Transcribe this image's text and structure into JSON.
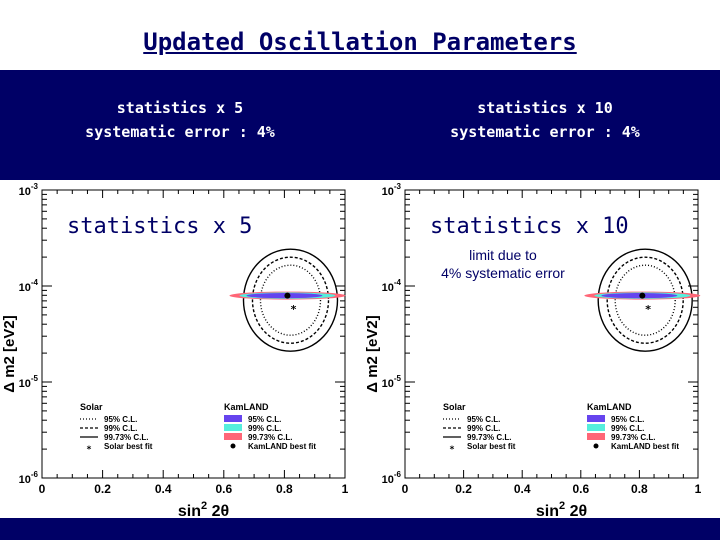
{
  "title": "Updated Oscillation Parameters",
  "band": {
    "left": {
      "line1": "statistics x 5",
      "line2": "systematic error : 4%"
    },
    "right": {
      "line1": "statistics x 10",
      "line2": "systematic error : 4%"
    }
  },
  "colors": {
    "navy": "#000066",
    "c95": "#6644ee",
    "c99": "#55eedd",
    "c9973": "#ff6677"
  },
  "chart_data": [
    {
      "type": "contour",
      "panel_label": "statistics x 5",
      "xlabel": "sin2 2θ",
      "xlabel_main": "sin",
      "xlabel_sup": "2",
      "xlabel_tail": " 2θ",
      "ylabel": "Δ m2 [eV2]",
      "x_ticks": [
        "0",
        "0.2",
        "0.4",
        "0.6",
        "0.8",
        "1"
      ],
      "y_ticks": [
        {
          "base": "10",
          "exp": "-3"
        },
        {
          "base": "10",
          "exp": "-4"
        },
        {
          "base": "10",
          "exp": "-5"
        },
        {
          "base": "10",
          "exp": "-6"
        }
      ],
      "xlim": [
        0,
        1
      ],
      "ylim_log10": [
        -6,
        -3
      ],
      "solar_best_fit": {
        "x": 0.83,
        "log10_y": -4.2
      },
      "kamland_best_fit": {
        "x": 0.81,
        "log10_y": -4.1
      },
      "solar_legend": {
        "title": "Solar",
        "entries": [
          "95% C.L.",
          "99% C.L.",
          "99.73% C.L.",
          "Solar best fit"
        ]
      },
      "kamland_legend": {
        "title": "KamLAND",
        "entries": [
          "95% C.L.",
          "99% C.L.",
          "99.73% C.L.",
          "KamLAND best fit"
        ]
      }
    },
    {
      "type": "contour",
      "panel_label": "statistics x 10",
      "annotation": {
        "line1": "limit due to",
        "line2": "4% systematic error"
      },
      "xlabel": "sin2 2θ",
      "xlabel_main": "sin",
      "xlabel_sup": "2",
      "xlabel_tail": " 2θ",
      "ylabel": "Δ m2 [eV2]",
      "x_ticks": [
        "0",
        "0.2",
        "0.4",
        "0.6",
        "0.8",
        "1"
      ],
      "y_ticks": [
        {
          "base": "10",
          "exp": "-3"
        },
        {
          "base": "10",
          "exp": "-4"
        },
        {
          "base": "10",
          "exp": "-5"
        },
        {
          "base": "10",
          "exp": "-6"
        }
      ],
      "xlim": [
        0,
        1
      ],
      "ylim_log10": [
        -6,
        -3
      ],
      "solar_best_fit": {
        "x": 0.83,
        "log10_y": -4.2
      },
      "kamland_best_fit": {
        "x": 0.81,
        "log10_y": -4.1
      },
      "solar_legend": {
        "title": "Solar",
        "entries": [
          "95% C.L.",
          "99% C.L.",
          "99.73% C.L.",
          "Solar best fit"
        ]
      },
      "kamland_legend": {
        "title": "KamLAND",
        "entries": [
          "95% C.L.",
          "99% C.L.",
          "99.73% C.L.",
          "KamLAND best fit"
        ]
      }
    }
  ]
}
